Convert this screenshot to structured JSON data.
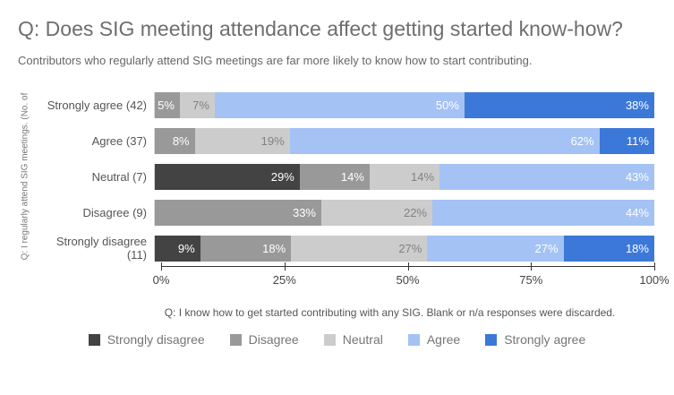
{
  "header": {
    "title": "Q: Does SIG meeting attendance affect getting started know-how?",
    "subtitle": "Contributors who regularly attend SIG meetings are far more likely to know how to start contributing."
  },
  "footer_note": "Q: I know how to get started contributing with any SIG. Blank or n/a responses were discarded.",
  "chart_data": {
    "type": "bar",
    "variant": "horizontal-stacked-100-percent",
    "title": "Q: Does SIG meeting attendance affect getting started know-how?",
    "ylabel": "Q: I regularly attend SIG meetings. (No. of",
    "xlabel": "",
    "xlim": [
      0,
      100
    ],
    "x_tick_values": [
      0,
      25,
      50,
      75,
      100
    ],
    "x_tick_labels": [
      "0%",
      "25%",
      "50%",
      "75%",
      "100%"
    ],
    "grid": false,
    "legend_position": "bottom",
    "categories": [
      "Strongly agree (42)",
      "Agree (37)",
      "Neutral (7)",
      "Disagree (9)",
      "Strongly disagree (11)"
    ],
    "series": [
      {
        "name": "Strongly disagree",
        "color": "#434343",
        "label_color": "#ffffff",
        "values": [
          0,
          0,
          29,
          0,
          9
        ]
      },
      {
        "name": "Disagree",
        "color": "#999999",
        "label_color": "#ffffff",
        "values": [
          5,
          8,
          14,
          33,
          18
        ]
      },
      {
        "name": "Neutral",
        "color": "#cccccc",
        "label_color": "#828282",
        "values": [
          7,
          19,
          14,
          22,
          27
        ]
      },
      {
        "name": "Agree",
        "color": "#a4c2f4",
        "label_color": "#ffffff",
        "values": [
          50,
          62,
          43,
          44,
          27
        ]
      },
      {
        "name": "Strongly agree",
        "color": "#3c78d8",
        "label_color": "#ffffff",
        "values": [
          38,
          11,
          0,
          0,
          18
        ]
      }
    ],
    "value_label_suffix": "%"
  },
  "colors": {
    "background": "#ffffff",
    "title_text": "#6e6e6e",
    "subtitle_text": "#666666",
    "category_label_text": "#555555",
    "axis_line": "#333333",
    "tick_label_text": "#444444",
    "footer_text": "#555555",
    "legend_text": "#757575"
  }
}
